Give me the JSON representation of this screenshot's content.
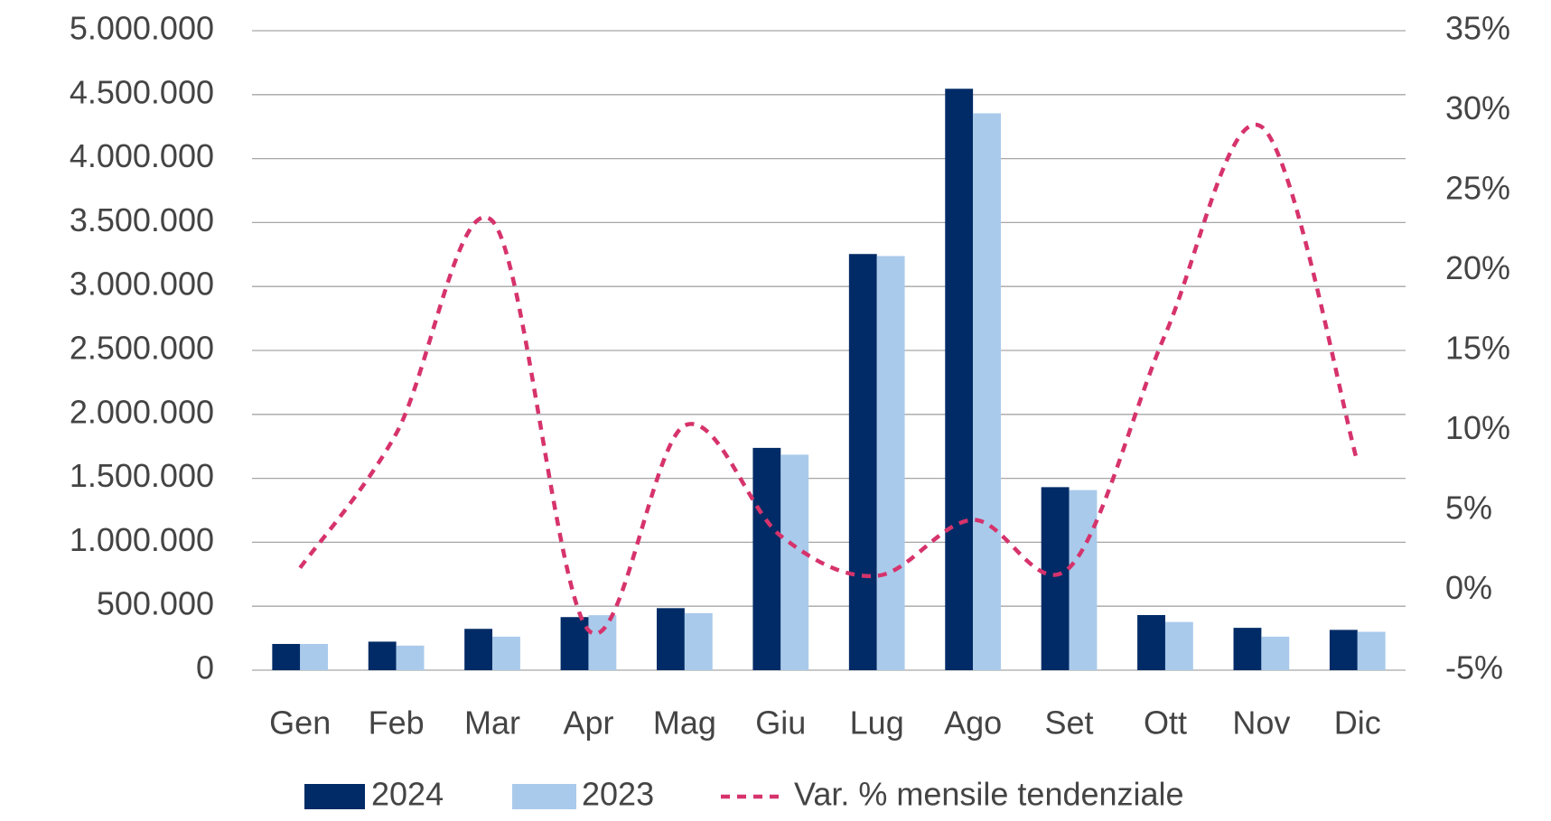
{
  "chart_data": {
    "type": "bar",
    "categories": [
      "Gen",
      "Feb",
      "Mar",
      "Apr",
      "Mag",
      "Giu",
      "Lug",
      "Ago",
      "Set",
      "Ott",
      "Nov",
      "Dic"
    ],
    "series": [
      {
        "name": "2024",
        "color": "#002b66",
        "values": [
          205000,
          223000,
          323000,
          415000,
          485000,
          1738000,
          3254000,
          4546000,
          1431000,
          431000,
          331000,
          315000
        ]
      },
      {
        "name": "2023",
        "color": "#a9caeb",
        "values": [
          205000,
          192000,
          262000,
          430000,
          446000,
          1685000,
          3238000,
          4354000,
          1408000,
          377000,
          262000,
          300000
        ]
      },
      {
        "name": "Var. % mensile tendenziale",
        "color": "#d6336c",
        "type": "line",
        "axis": "y2",
        "dashed": true,
        "smooth": true,
        "values": [
          1.4,
          9.8,
          23.1,
          -2.5,
          10.3,
          3.4,
          0.9,
          4.4,
          1.4,
          16.0,
          29.0,
          8.0
        ]
      }
    ],
    "ylim": [
      0,
      5000000
    ],
    "yticks": [
      {
        "value": 0,
        "label": "0"
      },
      {
        "value": 500000,
        "label": "500.000"
      },
      {
        "value": 1000000,
        "label": "1.000.000"
      },
      {
        "value": 1500000,
        "label": "1.500.000"
      },
      {
        "value": 2000000,
        "label": "2.000.000"
      },
      {
        "value": 2500000,
        "label": "2.500.000"
      },
      {
        "value": 3000000,
        "label": "3.000.000"
      },
      {
        "value": 3500000,
        "label": "3.500.000"
      },
      {
        "value": 4000000,
        "label": "4.000.000"
      },
      {
        "value": 4500000,
        "label": "4.500.000"
      },
      {
        "value": 5000000,
        "label": "5.000.000"
      }
    ],
    "y2lim": [
      -5,
      35
    ],
    "y2ticks": [
      {
        "value": -5,
        "label": "-5%"
      },
      {
        "value": 0,
        "label": "0%"
      },
      {
        "value": 5,
        "label": "5%"
      },
      {
        "value": 10,
        "label": "10%"
      },
      {
        "value": 15,
        "label": "15%"
      },
      {
        "value": 20,
        "label": "20%"
      },
      {
        "value": 25,
        "label": "25%"
      },
      {
        "value": 30,
        "label": "30%"
      },
      {
        "value": 35,
        "label": "35%"
      }
    ],
    "grid": true,
    "legend": "bottom"
  }
}
